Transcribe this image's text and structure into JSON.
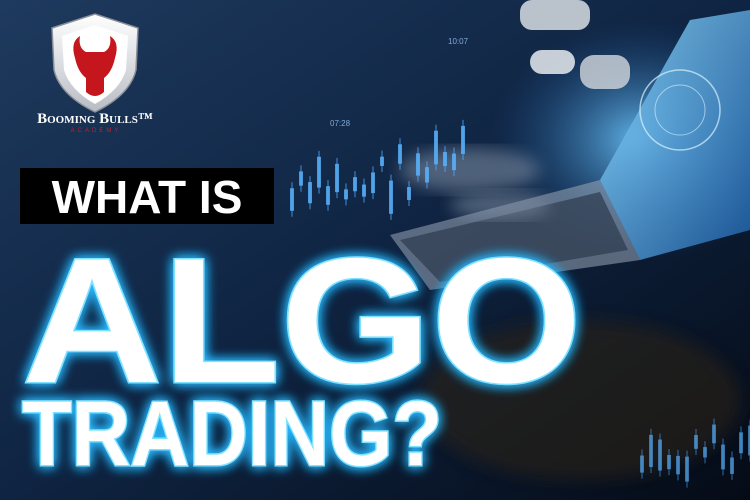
{
  "logo": {
    "name": "Booming Bulls™",
    "tagline": "ACADEMY"
  },
  "headline": {
    "line1": "WHAT IS",
    "line2": "ALGO",
    "line3": "TRADING?"
  },
  "screen_labels": [
    "07:28",
    "10:07"
  ]
}
